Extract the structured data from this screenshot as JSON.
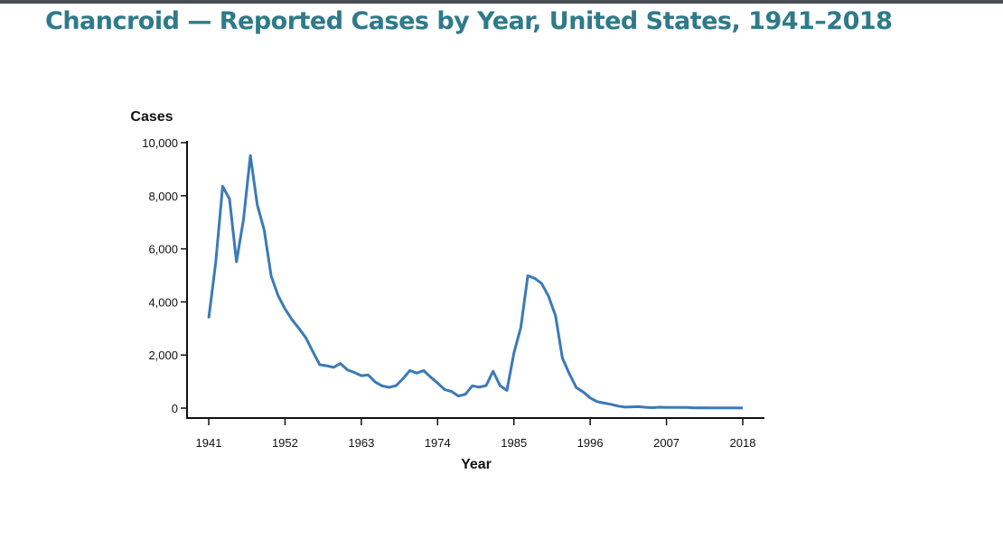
{
  "title": "Chancroid — Reported Cases by Year, United States, 1941–2018",
  "chart_data": {
    "type": "line",
    "title": "Chancroid — Reported Cases by Year, United States, 1941–2018",
    "xlabel": "Year",
    "ylabel": "Cases",
    "xlim": [
      1941,
      2018
    ],
    "ylim": [
      0,
      10000
    ],
    "x_ticks": [
      "1941",
      "1952",
      "1963",
      "1974",
      "1985",
      "1996",
      "2007",
      "2018"
    ],
    "y_ticks": [
      "0",
      "2,000",
      "4,000",
      "6,000",
      "8,000",
      "10,000"
    ],
    "grid": false,
    "color": "#3a7ab8",
    "x_start": 1941,
    "values": [
      3384,
      5477,
      8354,
      7878,
      5515,
      7091,
      9515,
      7661,
      6707,
      4977,
      4233,
      3738,
      3338,
      3003,
      2649,
      2135,
      1637,
      1595,
      1537,
      1680,
      1438,
      1344,
      1220,
      1247,
      982,
      838,
      784,
      845,
      1104,
      1416,
      1320,
      1414,
      1165,
      945,
      700,
      628,
      455,
      521,
      840,
      788,
      850,
      1392,
      847,
      665,
      2067,
      3045,
      4986,
      4891,
      4697,
      4212,
      3476,
      1886,
      1292,
      773,
      607,
      386,
      246,
      189,
      143,
      78,
      38,
      48,
      54,
      30,
      17,
      33,
      23,
      25,
      28,
      24,
      8,
      15,
      10,
      6,
      11,
      7,
      7,
      3
    ]
  }
}
